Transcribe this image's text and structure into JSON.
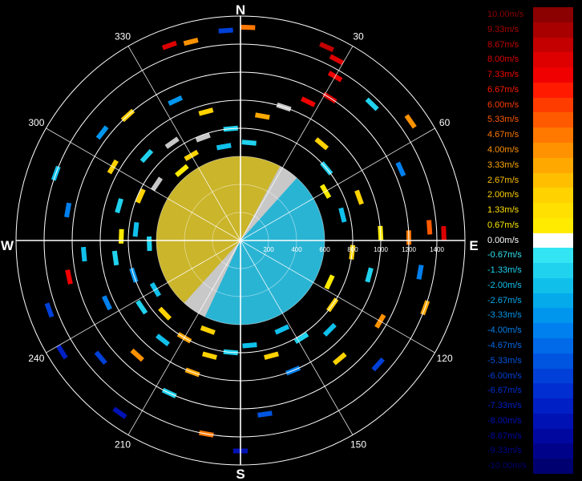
{
  "chart_data": {
    "type": "polar-ppi",
    "compass": {
      "north": "N",
      "east": "E",
      "south": "S",
      "west": "W"
    },
    "azimuth_labels": [
      "30",
      "60",
      "120",
      "150",
      "210",
      "240",
      "300",
      "330"
    ],
    "range_labels": [
      "200",
      "400",
      "600",
      "800",
      "1000",
      "1200",
      "1400"
    ],
    "range_max": 1600,
    "colorbar": {
      "labels": [
        "10.00m/s",
        "9.33m/s",
        "8.67m/s",
        "8.00m/s",
        "7.33m/s",
        "6.67m/s",
        "6.00m/s",
        "5.33m/s",
        "4.67m/s",
        "4.00m/s",
        "3.33m/s",
        "2.67m/s",
        "2.00m/s",
        "1.33m/s",
        "0.67m/s",
        "0.00m/s",
        "-0.67m/s",
        "-1.33m/s",
        "-2.00m/s",
        "-2.67m/s",
        "-3.33m/s",
        "-4.00m/s",
        "-4.67m/s",
        "-5.33m/s",
        "-6.00m/s",
        "-6.67m/s",
        "-7.33m/s",
        "-8.00m/s",
        "-8.67m/s",
        "-9.33m/s",
        "-10.00m/s"
      ],
      "colors": [
        "#8b0000",
        "#a80000",
        "#c40000",
        "#de0000",
        "#f00000",
        "#ff1a00",
        "#ff3c00",
        "#ff5a00",
        "#ff7800",
        "#ff9200",
        "#ffa800",
        "#ffbf00",
        "#ffd200",
        "#ffe000",
        "#ffeb00",
        "#ffffff",
        "#33e5f2",
        "#20d2ee",
        "#10c0eb",
        "#05aaeb",
        "#0096ee",
        "#0080ee",
        "#006ae8",
        "#0055e0",
        "#0040d8",
        "#002ed0",
        "#001fc4",
        "#0012b4",
        "#0008a0",
        "#00038a",
        "#000070"
      ]
    },
    "near_field": {
      "range_max": 600,
      "sector_colors": {
        "approach": "#cbb52a",
        "recede": "#2ab4d4",
        "zero": "#c8c8c8"
      }
    },
    "clutter": [
      {
        "az": 2,
        "r": 1520,
        "c": "#ff7800"
      },
      {
        "az": -4,
        "r": 1500,
        "c": "#0040d8"
      },
      {
        "az": -20,
        "r": 1480,
        "c": "#de0000"
      },
      {
        "az": -14,
        "r": 1460,
        "c": "#ff9200"
      },
      {
        "az": 24,
        "r": 1510,
        "c": "#c40000"
      },
      {
        "az": 28,
        "r": 1460,
        "c": "#de0000"
      },
      {
        "az": 30,
        "r": 1350,
        "c": "#f00000"
      },
      {
        "az": 32,
        "r": 1200,
        "c": "#de0000"
      },
      {
        "az": 26,
        "r": 1100,
        "c": "#f00000"
      },
      {
        "az": 44,
        "r": 1350,
        "c": "#20d2ee"
      },
      {
        "az": 55,
        "r": 1480,
        "c": "#ff9200"
      },
      {
        "az": 66,
        "r": 1250,
        "c": "#0080ee"
      },
      {
        "az": 86,
        "r": 1350,
        "c": "#ff5a00"
      },
      {
        "az": 88,
        "r": 1450,
        "c": "#de0000"
      },
      {
        "az": 89,
        "r": 1200,
        "c": "#ff7800"
      },
      {
        "az": 87,
        "r": 1000,
        "c": "#ffeb00"
      },
      {
        "az": 100,
        "r": 1300,
        "c": "#0080ee"
      },
      {
        "az": 110,
        "r": 1400,
        "c": "#ffa800"
      },
      {
        "az": 120,
        "r": 1150,
        "c": "#ff9200"
      },
      {
        "az": 132,
        "r": 1320,
        "c": "#0040d8"
      },
      {
        "az": 140,
        "r": 1100,
        "c": "#ffd200"
      },
      {
        "az": 158,
        "r": 1000,
        "c": "#0080ee"
      },
      {
        "az": 172,
        "r": 1250,
        "c": "#0055e0"
      },
      {
        "az": 180,
        "r": 1500,
        "c": "#0012b4"
      },
      {
        "az": 190,
        "r": 1400,
        "c": "#ff7800"
      },
      {
        "az": 200,
        "r": 1000,
        "c": "#ffa800"
      },
      {
        "az": 205,
        "r": 1200,
        "c": "#20d2ee"
      },
      {
        "az": 215,
        "r": 1500,
        "c": "#0012b4"
      },
      {
        "az": 222,
        "r": 1100,
        "c": "#ff9200"
      },
      {
        "az": 230,
        "r": 1300,
        "c": "#0040d8"
      },
      {
        "az": 238,
        "r": 1500,
        "c": "#001fc4"
      },
      {
        "az": 245,
        "r": 1050,
        "c": "#0080ee"
      },
      {
        "az": 250,
        "r": 1450,
        "c": "#0040d8"
      },
      {
        "az": 258,
        "r": 1250,
        "c": "#f00000"
      },
      {
        "az": 265,
        "r": 1120,
        "c": "#10c0eb"
      },
      {
        "az": 272,
        "r": 850,
        "c": "#ffeb00"
      },
      {
        "az": 280,
        "r": 1250,
        "c": "#0080ee"
      },
      {
        "az": 290,
        "r": 1400,
        "c": "#10c0eb"
      },
      {
        "az": 300,
        "r": 1050,
        "c": "#ffd200"
      },
      {
        "az": 308,
        "r": 1250,
        "c": "#0096ee"
      },
      {
        "az": 318,
        "r": 1200,
        "c": "#ffd200"
      },
      {
        "az": 325,
        "r": 850,
        "c": "#c8c8c8"
      },
      {
        "az": 335,
        "r": 1100,
        "c": "#0096ee"
      },
      {
        "az": 345,
        "r": 950,
        "c": "#ffd200"
      },
      {
        "az": 355,
        "r": 800,
        "c": "#20d2ee"
      },
      {
        "az": 10,
        "r": 900,
        "c": "#ffa800"
      },
      {
        "az": 18,
        "r": 1000,
        "c": "#c8c8c8"
      },
      {
        "az": 40,
        "r": 900,
        "c": "#ffd200"
      },
      {
        "az": 50,
        "r": 800,
        "c": "#20d2ee"
      },
      {
        "az": 70,
        "r": 900,
        "c": "#ffd200"
      },
      {
        "az": 76,
        "r": 750,
        "c": "#10c0eb"
      },
      {
        "az": 96,
        "r": 800,
        "c": "#ffd200"
      },
      {
        "az": 105,
        "r": 950,
        "c": "#20d2ee"
      },
      {
        "az": 125,
        "r": 800,
        "c": "#ffd200"
      },
      {
        "az": 135,
        "r": 900,
        "c": "#10c0eb"
      },
      {
        "az": 148,
        "r": 820,
        "c": "#20d2ee"
      },
      {
        "az": 165,
        "r": 850,
        "c": "#ffd200"
      },
      {
        "az": 175,
        "r": 750,
        "c": "#10c0eb"
      },
      {
        "az": 185,
        "r": 800,
        "c": "#20d2ee"
      },
      {
        "az": 195,
        "r": 850,
        "c": "#ffd200"
      },
      {
        "az": 210,
        "r": 800,
        "c": "#ffa800"
      },
      {
        "az": 218,
        "r": 900,
        "c": "#10c0eb"
      },
      {
        "az": 226,
        "r": 750,
        "c": "#ffd200"
      },
      {
        "az": 236,
        "r": 850,
        "c": "#20d2ee"
      },
      {
        "az": 252,
        "r": 800,
        "c": "#0096ee"
      },
      {
        "az": 262,
        "r": 900,
        "c": "#20d2ee"
      },
      {
        "az": 276,
        "r": 750,
        "c": "#10c0eb"
      },
      {
        "az": 286,
        "r": 900,
        "c": "#20d2ee"
      },
      {
        "az": 294,
        "r": 780,
        "c": "#ffd200"
      },
      {
        "az": 304,
        "r": 720,
        "c": "#c8c8c8"
      },
      {
        "az": 312,
        "r": 900,
        "c": "#20d2ee"
      },
      {
        "az": 330,
        "r": 700,
        "c": "#ffd200"
      },
      {
        "az": 340,
        "r": 780,
        "c": "#c8c8c8"
      },
      {
        "az": 350,
        "r": 680,
        "c": "#10c0eb"
      },
      {
        "az": 5,
        "r": 700,
        "c": "#20d2ee"
      },
      {
        "az": 60,
        "r": 700,
        "c": "#ffeb00"
      },
      {
        "az": 115,
        "r": 700,
        "c": "#ffeb00"
      },
      {
        "az": 155,
        "r": 700,
        "c": "#10c0eb"
      },
      {
        "az": 200,
        "r": 680,
        "c": "#ffd200"
      },
      {
        "az": 240,
        "r": 700,
        "c": "#10c0eb"
      },
      {
        "az": 268,
        "r": 650,
        "c": "#20d2ee"
      },
      {
        "az": 320,
        "r": 650,
        "c": "#ffeb00"
      }
    ]
  }
}
